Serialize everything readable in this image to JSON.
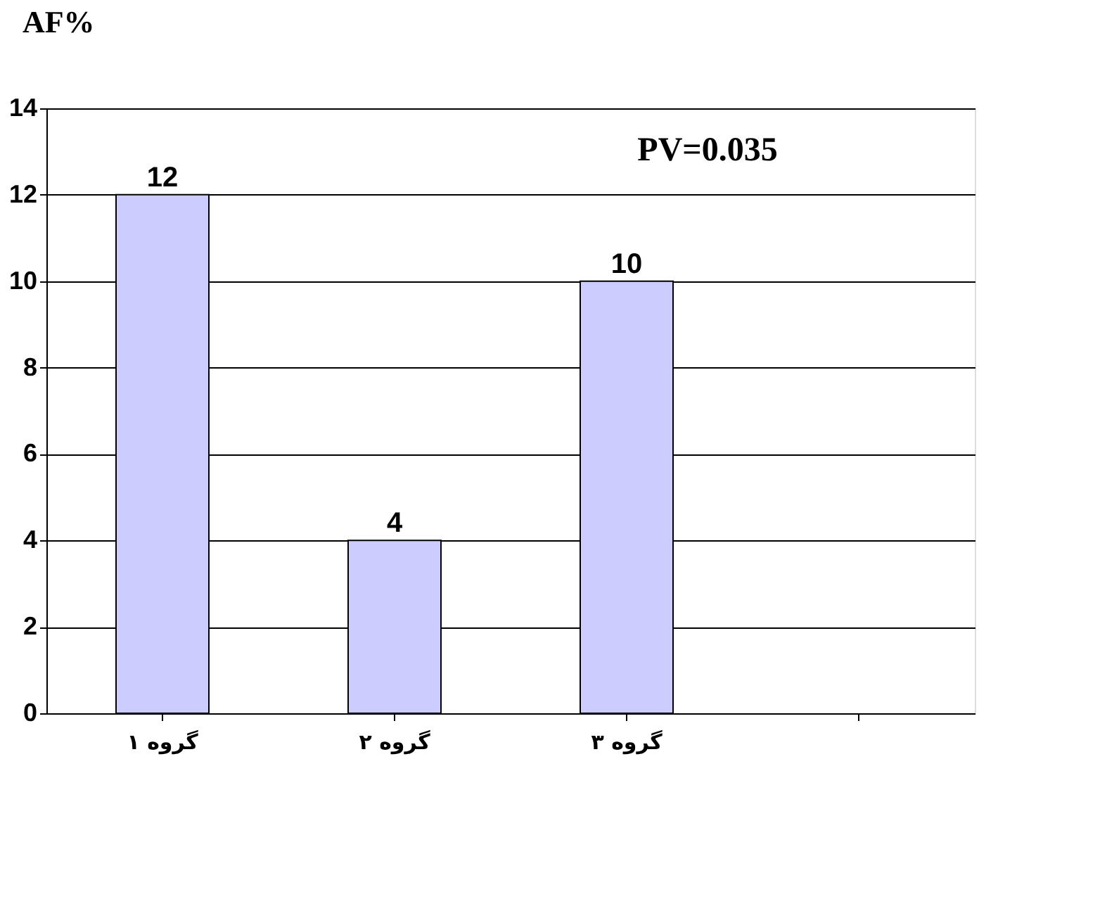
{
  "chart_data": {
    "type": "bar",
    "ylabel": "AF%",
    "categories": [
      "گروه ۱",
      "گروه ۲",
      "گروه ۳",
      null
    ],
    "values": [
      12,
      4,
      10,
      null
    ],
    "color": "#ccccff",
    "data_labels": true,
    "ylim": [
      0,
      14
    ],
    "yticks": [
      0,
      2,
      4,
      6,
      8,
      10,
      12,
      14
    ],
    "grid": "y",
    "annotations": [
      "PV=0.035"
    ]
  }
}
